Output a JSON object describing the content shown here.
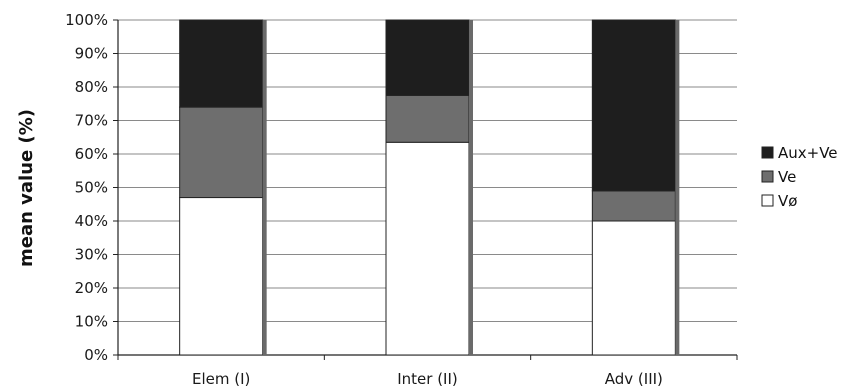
{
  "chart_data": {
    "type": "bar",
    "stacked": true,
    "normalized": true,
    "categories": [
      "Elem (I)",
      "Inter (II)",
      "Adv (III)"
    ],
    "series": [
      {
        "name": "Vø",
        "values": [
          47,
          63.5,
          40
        ],
        "color": "#ffffff"
      },
      {
        "name": "Ve",
        "values": [
          27,
          14,
          9
        ],
        "color": "#6e6e6e"
      },
      {
        "name": "Aux+Ve",
        "values": [
          26,
          22.5,
          51
        ],
        "color": "#1e1e1e"
      }
    ],
    "ylabel": "mean value (%)",
    "xlabel": "",
    "ylim": [
      0,
      100
    ],
    "yticks": [
      "0%",
      "10%",
      "20%",
      "30%",
      "40%",
      "50%",
      "60%",
      "70%",
      "80%",
      "90%",
      "100%"
    ],
    "legend": {
      "position": "right",
      "order": [
        "Aux+Ve",
        "Ve",
        "Vø"
      ]
    },
    "grid": true
  }
}
